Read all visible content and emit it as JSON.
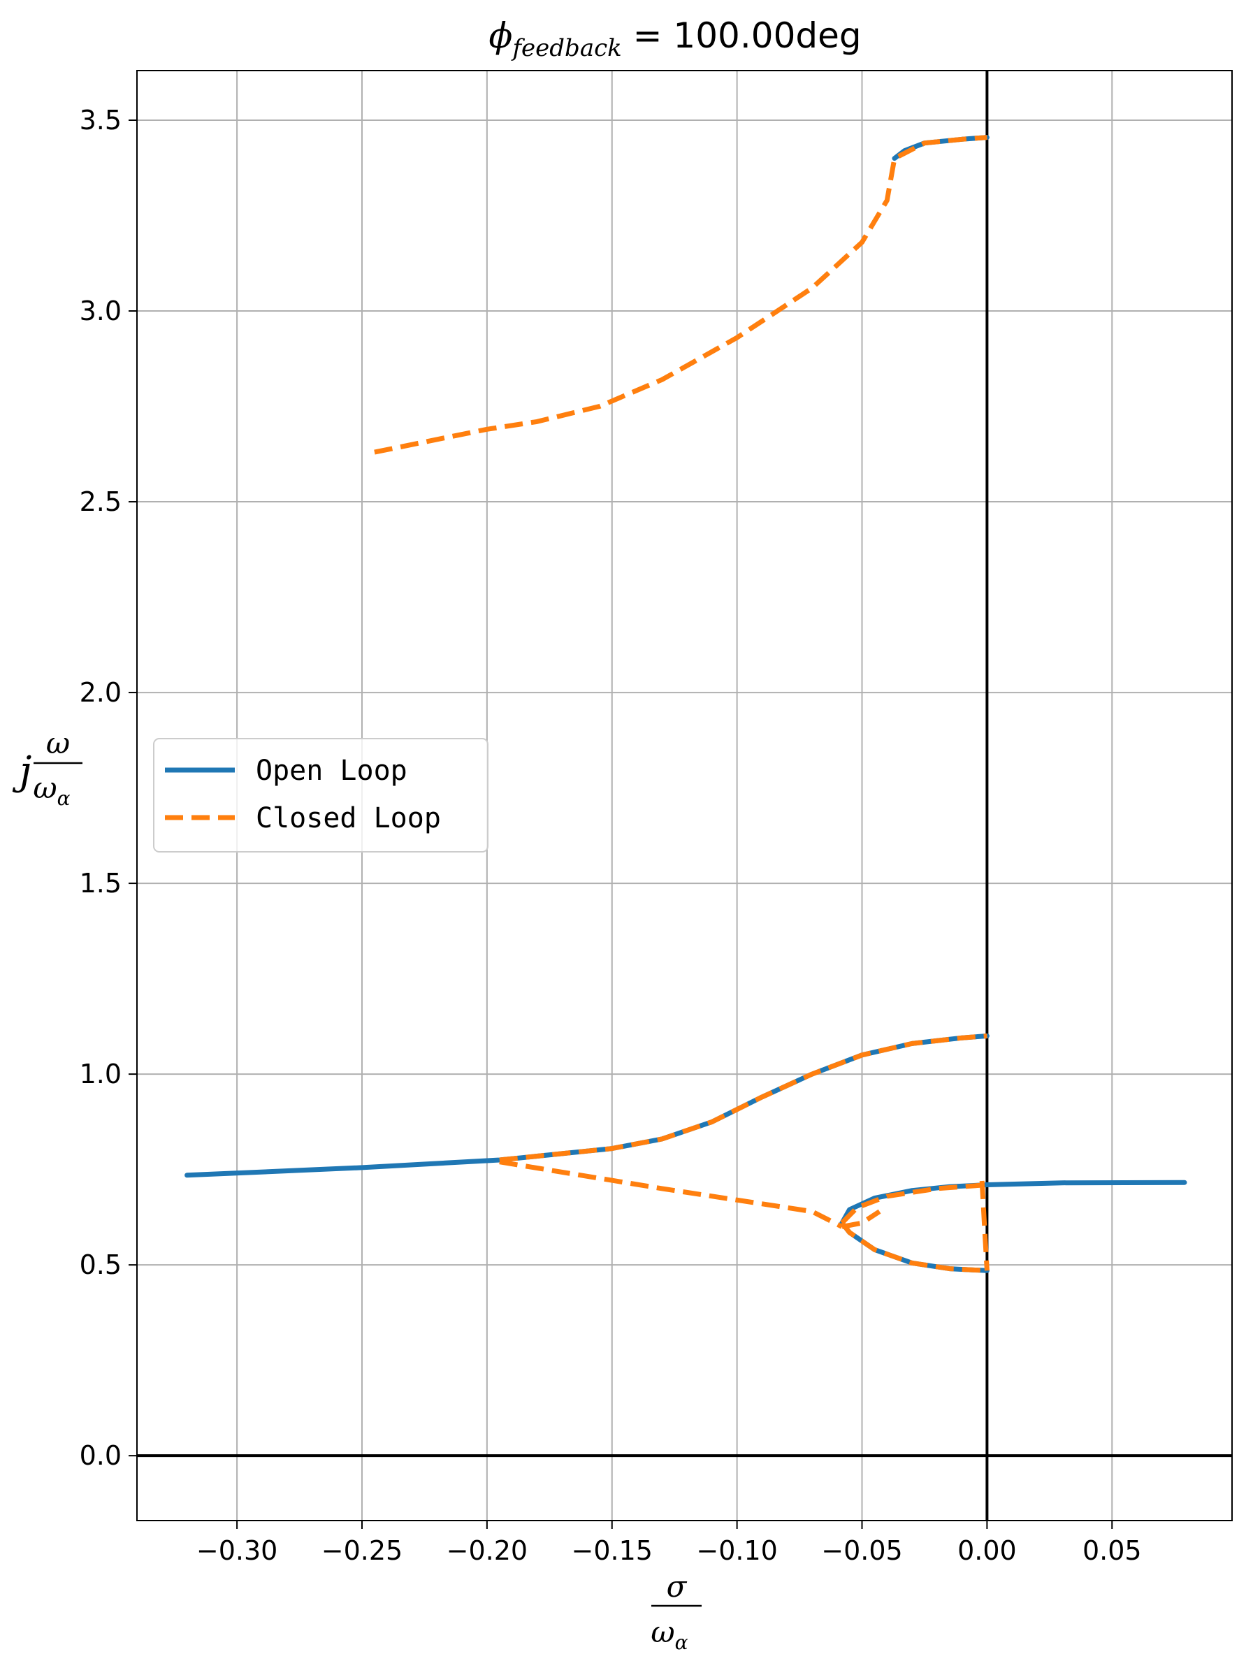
{
  "chart_data": {
    "type": "line",
    "title": {
      "base": "ϕ",
      "subscript": "feedback",
      "value": " = 100.00deg"
    },
    "xlabel": {
      "numerator": "σ",
      "denominator_base": "ω",
      "denominator_sub": "α"
    },
    "ylabel": {
      "prefix": "j",
      "numerator": "ω",
      "denominator_base": "ω",
      "denominator_sub": "α"
    },
    "xlim": [
      -0.34,
      0.098
    ],
    "ylim": [
      -0.17,
      3.63
    ],
    "xticks": [
      -0.3,
      -0.25,
      -0.2,
      -0.15,
      -0.1,
      -0.05,
      0.0,
      0.05
    ],
    "xtick_labels": [
      "−0.30",
      "−0.25",
      "−0.20",
      "−0.15",
      "−0.10",
      "−0.05",
      "0.00",
      "0.05"
    ],
    "yticks": [
      0.0,
      0.5,
      1.0,
      1.5,
      2.0,
      2.5,
      3.0,
      3.5
    ],
    "ytick_labels": [
      "0.0",
      "0.5",
      "1.0",
      "1.5",
      "2.0",
      "2.5",
      "3.0",
      "3.5"
    ],
    "grid": true,
    "legend_position": "center-left",
    "axis_lines": {
      "x": 0,
      "y": 0
    },
    "series": [
      {
        "name": "Open Loop",
        "color": "#1f77b4",
        "style": "solid",
        "segments": [
          [
            [
              -0.32,
              0.735
            ],
            [
              -0.25,
              0.755
            ],
            [
              -0.195,
              0.775
            ],
            [
              -0.15,
              0.805
            ],
            [
              -0.13,
              0.83
            ],
            [
              -0.11,
              0.875
            ],
            [
              -0.09,
              0.94
            ],
            [
              -0.07,
              1.0
            ],
            [
              -0.05,
              1.05
            ],
            [
              -0.03,
              1.08
            ],
            [
              -0.01,
              1.095
            ],
            [
              0.0,
              1.1
            ]
          ],
          [
            [
              -0.058,
              0.61
            ],
            [
              -0.055,
              0.645
            ],
            [
              -0.045,
              0.675
            ],
            [
              -0.03,
              0.695
            ],
            [
              -0.015,
              0.705
            ],
            [
              0.0,
              0.71
            ],
            [
              0.03,
              0.715
            ],
            [
              0.079,
              0.716
            ]
          ],
          [
            [
              -0.058,
              0.61
            ],
            [
              -0.055,
              0.585
            ],
            [
              -0.045,
              0.54
            ],
            [
              -0.03,
              0.505
            ],
            [
              -0.015,
              0.49
            ],
            [
              0.0,
              0.485
            ]
          ],
          [
            [
              -0.037,
              3.4
            ],
            [
              -0.033,
              3.42
            ],
            [
              -0.025,
              3.44
            ],
            [
              -0.01,
              3.45
            ],
            [
              0.0,
              3.455
            ]
          ]
        ]
      },
      {
        "name": "Closed Loop",
        "color": "#ff7f0e",
        "style": "dashed",
        "segments": [
          [
            [
              -0.195,
              0.775
            ],
            [
              -0.15,
              0.805
            ],
            [
              -0.13,
              0.83
            ],
            [
              -0.11,
              0.875
            ],
            [
              -0.09,
              0.94
            ],
            [
              -0.07,
              1.0
            ],
            [
              -0.05,
              1.05
            ],
            [
              -0.03,
              1.08
            ],
            [
              -0.01,
              1.095
            ],
            [
              0.0,
              1.1
            ]
          ],
          [
            [
              -0.195,
              0.77
            ],
            [
              -0.13,
              0.7
            ],
            [
              -0.07,
              0.64
            ],
            [
              -0.058,
              0.6
            ]
          ],
          [
            [
              -0.058,
              0.6
            ],
            [
              -0.05,
              0.61
            ],
            [
              -0.043,
              0.64
            ]
          ],
          [
            [
              -0.058,
              0.61
            ],
            [
              -0.052,
              0.65
            ],
            [
              -0.04,
              0.68
            ],
            [
              -0.02,
              0.7
            ],
            [
              0.0,
              0.71
            ]
          ],
          [
            [
              -0.058,
              0.61
            ],
            [
              -0.055,
              0.585
            ],
            [
              -0.045,
              0.54
            ],
            [
              -0.03,
              0.505
            ],
            [
              -0.015,
              0.49
            ],
            [
              0.0,
              0.485
            ]
          ],
          [
            [
              -0.002,
              0.72
            ],
            [
              -0.001,
              0.6
            ],
            [
              0.0,
              0.485
            ]
          ],
          [
            [
              -0.245,
              2.63
            ],
            [
              -0.2,
              2.69
            ],
            [
              -0.18,
              2.71
            ],
            [
              -0.155,
              2.75
            ],
            [
              -0.13,
              2.82
            ],
            [
              -0.1,
              2.93
            ],
            [
              -0.07,
              3.06
            ],
            [
              -0.05,
              3.18
            ],
            [
              -0.04,
              3.29
            ],
            [
              -0.037,
              3.4
            ],
            [
              -0.025,
              3.44
            ],
            [
              -0.01,
              3.45
            ],
            [
              0.0,
              3.455
            ]
          ]
        ]
      }
    ]
  }
}
